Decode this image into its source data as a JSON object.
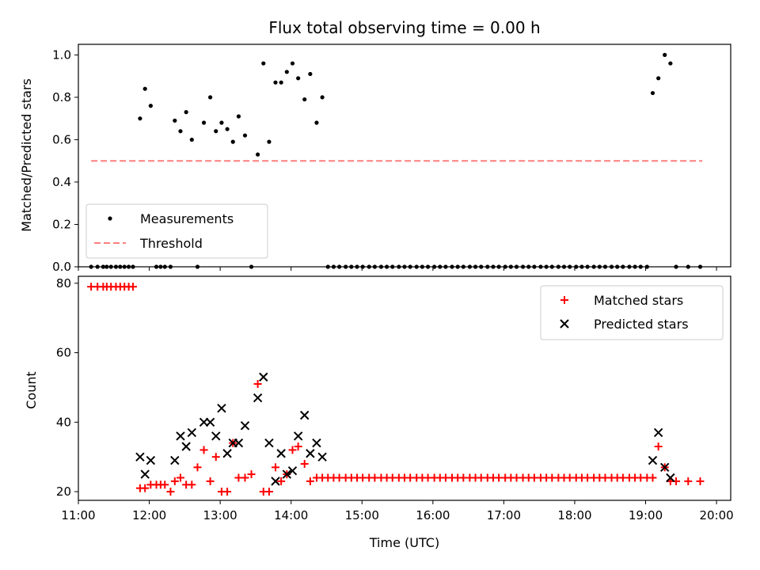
{
  "chart_data": [
    {
      "type": "scatter",
      "title": "Flux total observing time = 0.00 h",
      "ylabel": "Matched/Predicted stars",
      "xlim": [
        11.0,
        20.2
      ],
      "ylim": [
        0.0,
        1.05
      ],
      "yticks": [
        0.0,
        0.2,
        0.4,
        0.6,
        0.8,
        1.0
      ],
      "ytick_labels": [
        "0.0",
        "0.2",
        "0.4",
        "0.6",
        "0.8",
        "1.0"
      ],
      "legend_position": "lower-left",
      "legend": [
        "Measurements",
        "Threshold"
      ],
      "series": [
        {
          "name": "Measurements",
          "color": "#000000",
          "x": [
            11.18,
            11.27,
            11.35,
            11.4,
            11.46,
            11.53,
            11.59,
            11.65,
            11.71,
            11.77,
            11.87,
            11.94,
            12.02,
            12.1,
            12.16,
            12.22,
            12.3,
            12.36,
            12.44,
            12.52,
            12.6,
            12.68,
            12.77,
            12.86,
            12.94,
            13.02,
            13.1,
            13.18,
            13.26,
            13.35,
            13.44,
            13.53,
            13.61,
            13.69,
            13.78,
            13.86,
            13.94,
            14.02,
            14.1,
            14.19,
            14.27,
            14.36,
            14.44,
            14.52,
            14.6,
            14.68,
            14.77,
            14.85,
            14.93,
            15.01,
            15.1,
            15.18,
            15.27,
            15.35,
            15.43,
            15.52,
            15.6,
            15.68,
            15.77,
            15.85,
            15.93,
            16.02,
            16.1,
            16.18,
            16.27,
            16.35,
            16.43,
            16.52,
            16.6,
            16.68,
            16.77,
            16.85,
            16.93,
            17.02,
            17.1,
            17.18,
            17.27,
            17.35,
            17.43,
            17.52,
            17.6,
            17.68,
            17.77,
            17.85,
            17.93,
            18.02,
            18.1,
            18.18,
            18.27,
            18.35,
            18.43,
            18.52,
            18.6,
            18.68,
            18.77,
            18.85,
            18.93,
            19.02,
            19.1,
            19.18,
            19.27,
            19.35,
            19.43,
            19.6,
            19.77
          ],
          "y": [
            0.0,
            0.0,
            0.0,
            0.0,
            0.0,
            0.0,
            0.0,
            0.0,
            0.0,
            0.0,
            0.7,
            0.84,
            0.76,
            0.0,
            0.0,
            0.0,
            0.0,
            0.69,
            0.64,
            0.73,
            0.6,
            0.0,
            0.68,
            0.8,
            0.64,
            0.68,
            0.65,
            0.59,
            0.71,
            0.62,
            0.0,
            0.53,
            0.96,
            0.59,
            0.87,
            0.87,
            0.92,
            0.96,
            0.89,
            0.79,
            0.91,
            0.68,
            0.8,
            0.0,
            0.0,
            0.0,
            0.0,
            0.0,
            0.0,
            0.0,
            0.0,
            0.0,
            0.0,
            0.0,
            0.0,
            0.0,
            0.0,
            0.0,
            0.0,
            0.0,
            0.0,
            0.0,
            0.0,
            0.0,
            0.0,
            0.0,
            0.0,
            0.0,
            0.0,
            0.0,
            0.0,
            0.0,
            0.0,
            0.0,
            0.0,
            0.0,
            0.0,
            0.0,
            0.0,
            0.0,
            0.0,
            0.0,
            0.0,
            0.0,
            0.0,
            0.0,
            0.0,
            0.0,
            0.0,
            0.0,
            0.0,
            0.0,
            0.0,
            0.0,
            0.0,
            0.0,
            0.0,
            0.0,
            0.82,
            0.89,
            1.0,
            0.96,
            0.0,
            0.0,
            0.0
          ]
        },
        {
          "name": "Threshold",
          "color": "#ff7f7f",
          "type": "line",
          "x": [
            11.18,
            19.8
          ],
          "y": [
            0.5,
            0.5
          ]
        }
      ]
    },
    {
      "type": "scatter",
      "xlabel": "Time (UTC)",
      "ylabel": "Count",
      "xlim": [
        11.0,
        20.2
      ],
      "ylim": [
        17.5,
        82
      ],
      "yticks": [
        20,
        40,
        60,
        80
      ],
      "ytick_labels": [
        "20",
        "40",
        "60",
        "80"
      ],
      "xticks": [
        11,
        12,
        13,
        14,
        15,
        16,
        17,
        18,
        19,
        20
      ],
      "xtick_labels": [
        "11:00",
        "12:00",
        "13:00",
        "14:00",
        "15:00",
        "16:00",
        "17:00",
        "18:00",
        "19:00",
        "20:00"
      ],
      "legend_position": "upper-right",
      "legend": [
        "Matched stars",
        "Predicted stars"
      ],
      "series": [
        {
          "name": "Matched stars",
          "color": "#ff0000",
          "marker": "plus",
          "x": [
            11.18,
            11.27,
            11.35,
            11.4,
            11.46,
            11.53,
            11.59,
            11.65,
            11.71,
            11.77,
            11.87,
            11.94,
            12.02,
            12.1,
            12.16,
            12.22,
            12.3,
            12.36,
            12.44,
            12.52,
            12.6,
            12.68,
            12.77,
            12.86,
            12.94,
            13.02,
            13.1,
            13.18,
            13.26,
            13.35,
            13.44,
            13.53,
            13.61,
            13.69,
            13.78,
            13.86,
            13.94,
            14.02,
            14.1,
            14.19,
            14.27,
            14.36,
            14.44,
            14.52,
            14.6,
            14.68,
            14.77,
            14.85,
            14.93,
            15.01,
            15.1,
            15.18,
            15.27,
            15.35,
            15.43,
            15.52,
            15.6,
            15.68,
            15.77,
            15.85,
            15.93,
            16.02,
            16.1,
            16.18,
            16.27,
            16.35,
            16.43,
            16.52,
            16.6,
            16.68,
            16.77,
            16.85,
            16.93,
            17.02,
            17.1,
            17.18,
            17.27,
            17.35,
            17.43,
            17.52,
            17.6,
            17.68,
            17.77,
            17.85,
            17.93,
            18.02,
            18.1,
            18.18,
            18.27,
            18.35,
            18.43,
            18.52,
            18.6,
            18.68,
            18.77,
            18.85,
            18.93,
            19.02,
            19.1,
            19.18,
            19.27,
            19.35,
            19.43,
            19.6,
            19.77
          ],
          "y": [
            79,
            79,
            79,
            79,
            79,
            79,
            79,
            79,
            79,
            79,
            21,
            21,
            22,
            22,
            22,
            22,
            20,
            23,
            24,
            22,
            22,
            27,
            32,
            23,
            30,
            20,
            20,
            34,
            24,
            24,
            25,
            51,
            20,
            20,
            27,
            23,
            25,
            32,
            33,
            28,
            23,
            24,
            24,
            24,
            24,
            24,
            24,
            24,
            24,
            24,
            24,
            24,
            24,
            24,
            24,
            24,
            24,
            24,
            24,
            24,
            24,
            24,
            24,
            24,
            24,
            24,
            24,
            24,
            24,
            24,
            24,
            24,
            24,
            24,
            24,
            24,
            24,
            24,
            24,
            24,
            24,
            24,
            24,
            24,
            24,
            24,
            24,
            24,
            24,
            24,
            24,
            24,
            24,
            24,
            24,
            24,
            24,
            24,
            24,
            33,
            27,
            23,
            23,
            23,
            23
          ]
        },
        {
          "name": "Predicted stars",
          "color": "#000000",
          "marker": "x",
          "x": [
            11.87,
            11.94,
            12.02,
            12.36,
            12.44,
            12.52,
            12.6,
            12.77,
            12.86,
            12.94,
            13.02,
            13.1,
            13.18,
            13.26,
            13.35,
            13.53,
            13.61,
            13.69,
            13.78,
            13.86,
            13.94,
            14.02,
            14.1,
            14.19,
            14.27,
            14.36,
            14.44,
            19.1,
            19.18,
            19.27,
            19.35
          ],
          "y": [
            30,
            25,
            29,
            29,
            36,
            33,
            37,
            40,
            40,
            36,
            44,
            31,
            34,
            34,
            39,
            47,
            53,
            34,
            23,
            31,
            25,
            26,
            36,
            42,
            31,
            34,
            30,
            29,
            37,
            27,
            24
          ]
        }
      ]
    }
  ]
}
